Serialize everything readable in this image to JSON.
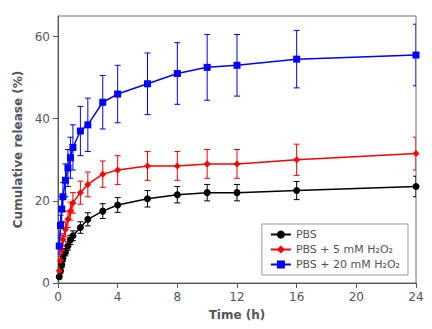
{
  "chart_data": {
    "type": "line",
    "xlabel": "Time (h)",
    "ylabel": "Cumulative release (%)",
    "xlim": [
      0,
      24
    ],
    "ylim": [
      0,
      65
    ],
    "xticks": [
      0,
      4,
      8,
      12,
      16,
      20,
      24
    ],
    "yticks": [
      0,
      20,
      40,
      60
    ],
    "grid": false,
    "legend": "lower right",
    "series": [
      {
        "name": "PBS",
        "color": "#000000",
        "marker": "circle",
        "x": [
          0.083,
          0.167,
          0.25,
          0.333,
          0.5,
          0.667,
          0.833,
          1.0,
          1.5,
          2.0,
          3.0,
          4.0,
          6.0,
          8.0,
          10.0,
          12.0,
          16.0,
          24.0
        ],
        "values": [
          1.5,
          3.0,
          4.5,
          6.0,
          7.5,
          9.0,
          10.5,
          11.5,
          13.5,
          15.5,
          17.5,
          19.0,
          20.5,
          21.5,
          22.0,
          22.0,
          22.5,
          23.5
        ],
        "errors": [
          0.5,
          0.6,
          0.7,
          0.8,
          0.9,
          1.0,
          1.1,
          1.2,
          1.4,
          1.6,
          1.8,
          1.8,
          2.0,
          2.0,
          2.0,
          2.0,
          2.2,
          2.5
        ]
      },
      {
        "name": "PBS + 5 mM H₂O₂",
        "color": "#ff0000",
        "marker": "diamond",
        "x": [
          0.083,
          0.167,
          0.25,
          0.333,
          0.5,
          0.667,
          0.833,
          1.0,
          1.5,
          2.0,
          3.0,
          4.0,
          6.0,
          8.0,
          10.0,
          12.0,
          16.0,
          24.0
        ],
        "values": [
          3.0,
          5.5,
          8.0,
          10.5,
          13.0,
          15.5,
          17.5,
          19.5,
          22.0,
          24.0,
          26.5,
          27.5,
          28.5,
          28.5,
          29.0,
          29.0,
          30.0,
          31.5
        ],
        "errors": [
          0.8,
          1.0,
          1.2,
          1.5,
          1.8,
          2.0,
          2.2,
          2.5,
          2.8,
          3.0,
          3.2,
          3.5,
          3.5,
          3.5,
          3.5,
          3.5,
          3.8,
          4.0
        ]
      },
      {
        "name": "PBS + 20 mM H₂O₂",
        "color": "#0000ff",
        "marker": "square",
        "x": [
          0.083,
          0.167,
          0.25,
          0.333,
          0.5,
          0.667,
          0.833,
          1.0,
          1.5,
          2.0,
          3.0,
          4.0,
          6.0,
          8.0,
          10.0,
          12.0,
          16.0,
          24.0
        ],
        "values": [
          9.0,
          14.0,
          18.0,
          21.0,
          25.0,
          28.0,
          30.5,
          33.0,
          37.0,
          38.5,
          44.0,
          46.0,
          48.5,
          51.0,
          52.5,
          53.0,
          54.5,
          55.5
        ],
        "errors": [
          2.0,
          2.5,
          3.0,
          3.5,
          4.0,
          4.5,
          5.0,
          5.5,
          6.0,
          6.5,
          6.5,
          7.0,
          7.5,
          7.5,
          8.0,
          7.5,
          7.0,
          7.5
        ]
      }
    ]
  }
}
